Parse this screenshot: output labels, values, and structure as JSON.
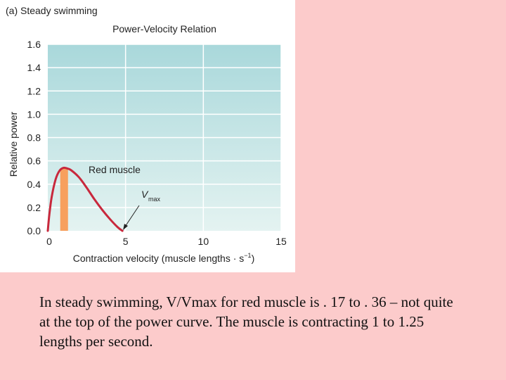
{
  "figure": {
    "panel_label": "(a) Steady swimming"
  },
  "chart_data": {
    "type": "line",
    "title": "Power-Velocity Relation",
    "xlabel": "Contraction velocity (muscle lengths · s",
    "xlabel_sup": "−1",
    "xlabel_close": ")",
    "ylabel": "Relative power",
    "xlim": [
      0,
      15
    ],
    "ylim": [
      0,
      1.6
    ],
    "x_ticks": [
      0,
      5,
      10,
      15
    ],
    "y_ticks": [
      0.0,
      0.2,
      0.4,
      0.6,
      0.8,
      1.0,
      1.2,
      1.4,
      1.6
    ],
    "x_tick_labels": [
      "0",
      "5",
      "10",
      "15"
    ],
    "y_tick_labels": [
      "0.0",
      "0.2",
      "0.4",
      "0.6",
      "0.8",
      "1.0",
      "1.2",
      "1.4",
      "1.6"
    ],
    "grid": true,
    "series": [
      {
        "name": "Red muscle",
        "color": "#c8283c",
        "x": [
          0,
          0.1,
          0.25,
          0.5,
          0.75,
          1.0,
          1.25,
          1.5,
          2.0,
          2.5,
          3.0,
          3.5,
          4.0,
          4.5,
          4.8
        ],
        "y": [
          0,
          0.14,
          0.29,
          0.44,
          0.515,
          0.54,
          0.535,
          0.52,
          0.46,
          0.37,
          0.27,
          0.18,
          0.1,
          0.03,
          0
        ]
      }
    ],
    "shaded_region": {
      "x_start": 0.8,
      "x_end": 1.3,
      "color": "#f7a05e"
    },
    "annotations": {
      "red_muscle_label": "Red muscle",
      "vmax_main": "V",
      "vmax_sub": "max",
      "vmax_x": 4.8
    }
  },
  "caption": "In steady swimming, V/Vmax for red muscle is . 17 to . 36 – not quite at the top of the power curve. The muscle is contracting 1 to 1.25 lengths per second."
}
